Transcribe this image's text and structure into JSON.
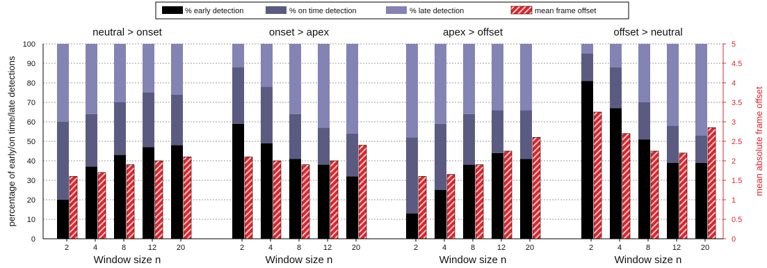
{
  "chart_data": {
    "type": "bar",
    "legend": {
      "position": "top",
      "entries": [
        "% early detection",
        "% on time detection",
        "% late detection",
        "mean frame offset"
      ]
    },
    "colors": {
      "early": "#000000",
      "ontime": "#5b5b82",
      "late": "#8384b4",
      "offset": "#e0242b",
      "right_axis": "#e0242b"
    },
    "ylabel": "percentage of early/on time/late detections",
    "ylabel_right": "mean absolute frame offset",
    "ylim": [
      0,
      100
    ],
    "ylim_right": [
      0,
      5
    ],
    "yticks": [
      "0",
      "10",
      "20",
      "30",
      "40",
      "50",
      "60",
      "70",
      "80",
      "90",
      "100"
    ],
    "yticks_right": [
      "0",
      "0.5",
      "1",
      "1.5",
      "2",
      "2.5",
      "3",
      "3.5",
      "4",
      "4.5",
      "5"
    ],
    "grid": true,
    "panels": [
      {
        "title": "neutral > onset",
        "xlabel": "Window size n",
        "categories": [
          "2",
          "4",
          "8",
          "12",
          "20"
        ],
        "early": [
          20,
          37,
          43,
          47,
          48
        ],
        "ontime": [
          40,
          27,
          27,
          28,
          26
        ],
        "late": [
          40,
          36,
          30,
          25,
          26
        ],
        "offset": [
          1.6,
          1.7,
          1.9,
          2.0,
          2.1
        ]
      },
      {
        "title": "onset > apex",
        "xlabel": "Window size n",
        "categories": [
          "2",
          "4",
          "8",
          "12",
          "20"
        ],
        "early": [
          59,
          49,
          41,
          38,
          32
        ],
        "ontime": [
          29,
          29,
          23,
          19,
          22
        ],
        "late": [
          12,
          22,
          36,
          43,
          46
        ],
        "offset": [
          2.1,
          2.0,
          1.9,
          2.0,
          2.4
        ]
      },
      {
        "title": "apex  > offset",
        "xlabel": "Window size n",
        "categories": [
          "2",
          "4",
          "8",
          "12",
          "20"
        ],
        "early": [
          13,
          25,
          38,
          44,
          41
        ],
        "ontime": [
          39,
          34,
          26,
          22,
          25
        ],
        "late": [
          48,
          41,
          36,
          34,
          34
        ],
        "offset": [
          1.6,
          1.65,
          1.9,
          2.25,
          2.6
        ]
      },
      {
        "title": "offset > neutral",
        "xlabel": "Window size n",
        "categories": [
          "2",
          "4",
          "8",
          "12",
          "20"
        ],
        "early": [
          81,
          67,
          51,
          39,
          39
        ],
        "ontime": [
          14,
          21,
          19,
          19,
          14
        ],
        "late": [
          5,
          12,
          30,
          42,
          47
        ],
        "offset": [
          3.25,
          2.7,
          2.25,
          2.2,
          2.85
        ]
      }
    ]
  }
}
